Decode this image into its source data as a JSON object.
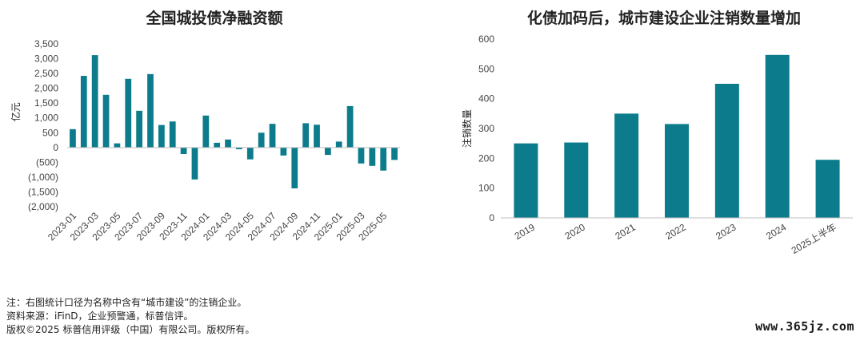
{
  "chart_data": [
    {
      "type": "bar",
      "title": "全国城投债净融资额",
      "ylabel": "亿元",
      "xlabel": "",
      "ylim": [
        -2000,
        3500
      ],
      "y_ticks": [
        "3,500",
        "3,000",
        "2,500",
        "2,000",
        "1,500",
        "1,000",
        "500",
        "0",
        "(500)",
        "(1,000)",
        "(1,500)",
        "(2,000)"
      ],
      "y_tick_values": [
        3500,
        3000,
        2500,
        2000,
        1500,
        1000,
        500,
        0,
        -500,
        -1000,
        -1500,
        -2000
      ],
      "categories": [
        "2023-01",
        "2023-02",
        "2023-03",
        "2023-04",
        "2023-05",
        "2023-06",
        "2023-07",
        "2023-08",
        "2023-09",
        "2023-10",
        "2023-11",
        "2023-12",
        "2024-01",
        "2024-02",
        "2024-03",
        "2024-04",
        "2024-05",
        "2024-06",
        "2024-07",
        "2024-08",
        "2024-09",
        "2024-10",
        "2024-11",
        "2024-12",
        "2025-01",
        "2025-02",
        "2025-03",
        "2025-04",
        "2025-05",
        "2025-06"
      ],
      "x_tick_labels": [
        "2023-01",
        "2023-03",
        "2023-05",
        "2023-07",
        "2023-09",
        "2023-11",
        "2024-01",
        "2024-03",
        "2024-05",
        "2024-07",
        "2024-09",
        "2024-11",
        "2025-01",
        "2025-03",
        "2025-05"
      ],
      "values": [
        620,
        2420,
        3120,
        1780,
        140,
        2320,
        1240,
        2480,
        760,
        880,
        -220,
        -1080,
        1080,
        160,
        270,
        -60,
        -400,
        500,
        800,
        -270,
        -1380,
        820,
        770,
        -250,
        200,
        1400,
        -540,
        -620,
        -780,
        -420
      ],
      "color": "#0c7c8c"
    },
    {
      "type": "bar",
      "title": "化债加码后，城市建设企业注销数量增加",
      "ylabel": "注销数量",
      "xlabel": "",
      "ylim": [
        0,
        600
      ],
      "y_ticks": [
        "600",
        "500",
        "400",
        "300",
        "200",
        "100",
        "0"
      ],
      "y_tick_values": [
        600,
        500,
        400,
        300,
        200,
        100,
        0
      ],
      "categories": [
        "2019",
        "2020",
        "2021",
        "2022",
        "2023",
        "2024",
        "2025上半年"
      ],
      "values": [
        250,
        253,
        350,
        315,
        450,
        547,
        195
      ],
      "color": "#0c7c8c"
    }
  ],
  "notes": [
    "注：右图统计口径为名称中含有“城市建设”的注销企业。",
    "资料来源：iFinD，企业预警通，标普信评。",
    "版权©2025 标普信用评级（中国）有限公司。版权所有。"
  ],
  "watermark": "www.365jz.com"
}
